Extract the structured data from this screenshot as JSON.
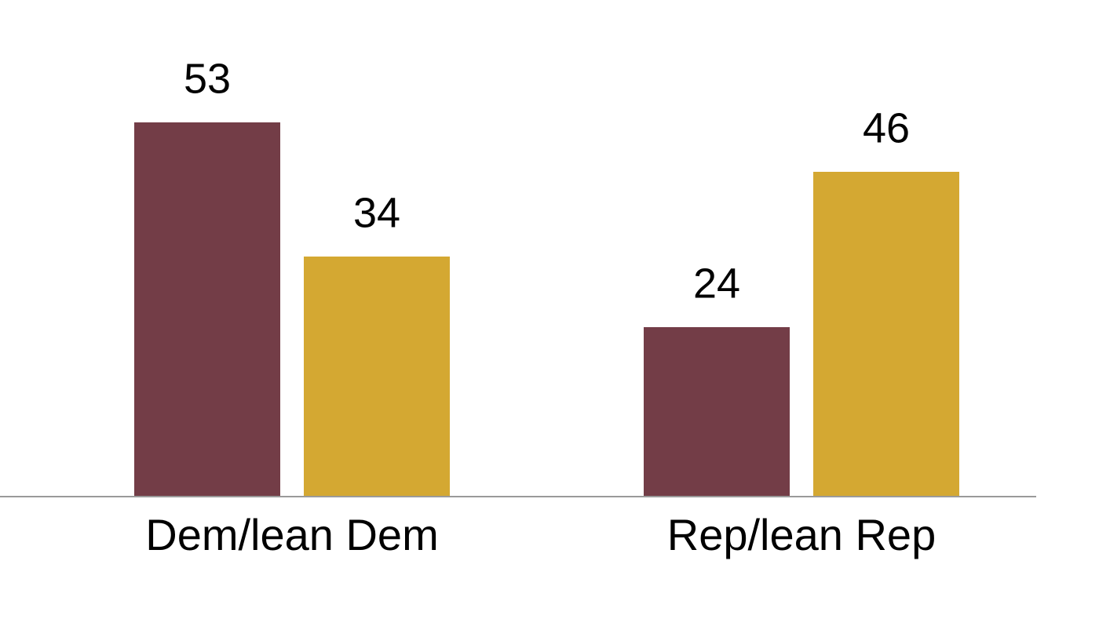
{
  "chart_data": {
    "type": "bar",
    "categories": [
      "Dem/lean Dem",
      "Rep/lean Rep"
    ],
    "series": [
      {
        "color": "#733d47",
        "values": [
          53,
          24
        ]
      },
      {
        "color": "#d4a832",
        "values": [
          34,
          46
        ]
      }
    ]
  }
}
